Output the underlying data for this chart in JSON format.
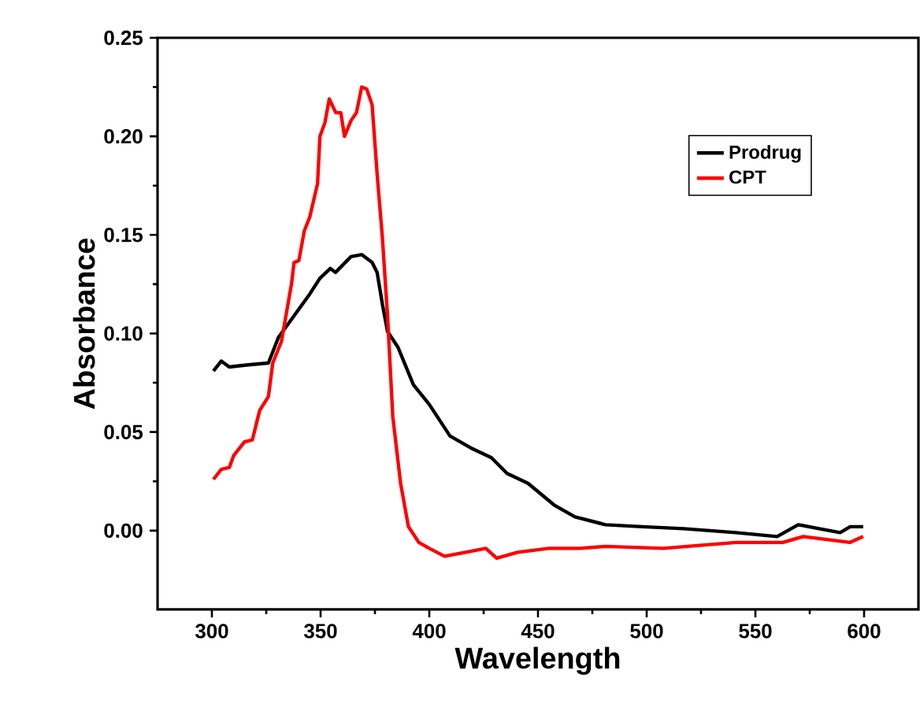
{
  "chart_data": {
    "type": "line",
    "xlabel": "Wavelength",
    "ylabel": "Absorbance",
    "xlim": [
      275,
      625
    ],
    "ylim": [
      -0.04,
      0.25
    ],
    "xticks": [
      300,
      350,
      400,
      450,
      500,
      550,
      600
    ],
    "yticks": [
      {
        "value": 0,
        "label": "0.00"
      },
      {
        "value": 0.05,
        "label": "0.05"
      },
      {
        "value": 0.1,
        "label": "0.10"
      },
      {
        "value": 0.15,
        "label": "0.15"
      },
      {
        "value": 0.2,
        "label": "0.20"
      },
      {
        "value": 0.25,
        "label": "0.25"
      }
    ],
    "legend": "top right",
    "line_style": "solid",
    "marker": "none",
    "grid": false,
    "series": [
      {
        "name": "Prodrug",
        "color": "#000000",
        "x": [
          300.7,
          304.3,
          308,
          316,
          326,
          330.6,
          337.8,
          345,
          349.7,
          354.5,
          356.9,
          364,
          368.9,
          373.7,
          376,
          378.4,
          380.8,
          385.6,
          392.7,
          400,
          409.5,
          419,
          428.6,
          435.8,
          445.4,
          457.4,
          467,
          481,
          498,
          517,
          541,
          560,
          569.7,
          579.3,
          589,
          593.6,
          599.6
        ],
        "values": [
          0.081,
          0.086,
          0.083,
          0.084,
          0.085,
          0.098,
          0.109,
          0.12,
          0.128,
          0.133,
          0.131,
          0.139,
          0.14,
          0.136,
          0.131,
          0.115,
          0.101,
          0.093,
          0.074,
          0.064,
          0.048,
          0.042,
          0.037,
          0.029,
          0.024,
          0.013,
          0.007,
          0.003,
          0.002,
          0.001,
          -0.001,
          -0.003,
          0.003,
          0.001,
          -0.001,
          0.002,
          0.002
        ]
      },
      {
        "name": "CPT",
        "color": "#ff0000",
        "x": [
          300.7,
          304.3,
          308,
          310,
          315,
          318.6,
          322,
          326,
          328,
          332,
          336.6,
          337.8,
          340,
          342.5,
          345,
          348.6,
          349.7,
          352,
          354,
          357,
          359.3,
          361,
          364,
          366.5,
          368.9,
          371.2,
          373.7,
          376,
          378.4,
          380.8,
          383.2,
          386.8,
          390.4,
          395.2,
          400,
          407,
          416.7,
          426,
          431,
          440.6,
          455,
          469,
          481,
          507.6,
          541,
          562.6,
          572,
          593.6,
          599.6
        ],
        "values": [
          0.026,
          0.031,
          0.032,
          0.038,
          0.045,
          0.046,
          0.061,
          0.068,
          0.085,
          0.096,
          0.125,
          0.136,
          0.137,
          0.152,
          0.159,
          0.176,
          0.2,
          0.207,
          0.219,
          0.212,
          0.212,
          0.2,
          0.208,
          0.212,
          0.225,
          0.224,
          0.216,
          0.181,
          0.149,
          0.109,
          0.058,
          0.024,
          0.002,
          -0.006,
          -0.009,
          -0.013,
          -0.011,
          -0.009,
          -0.014,
          -0.011,
          -0.009,
          -0.009,
          -0.008,
          -0.009,
          -0.006,
          -0.006,
          -0.003,
          -0.006,
          -0.003
        ]
      }
    ]
  }
}
